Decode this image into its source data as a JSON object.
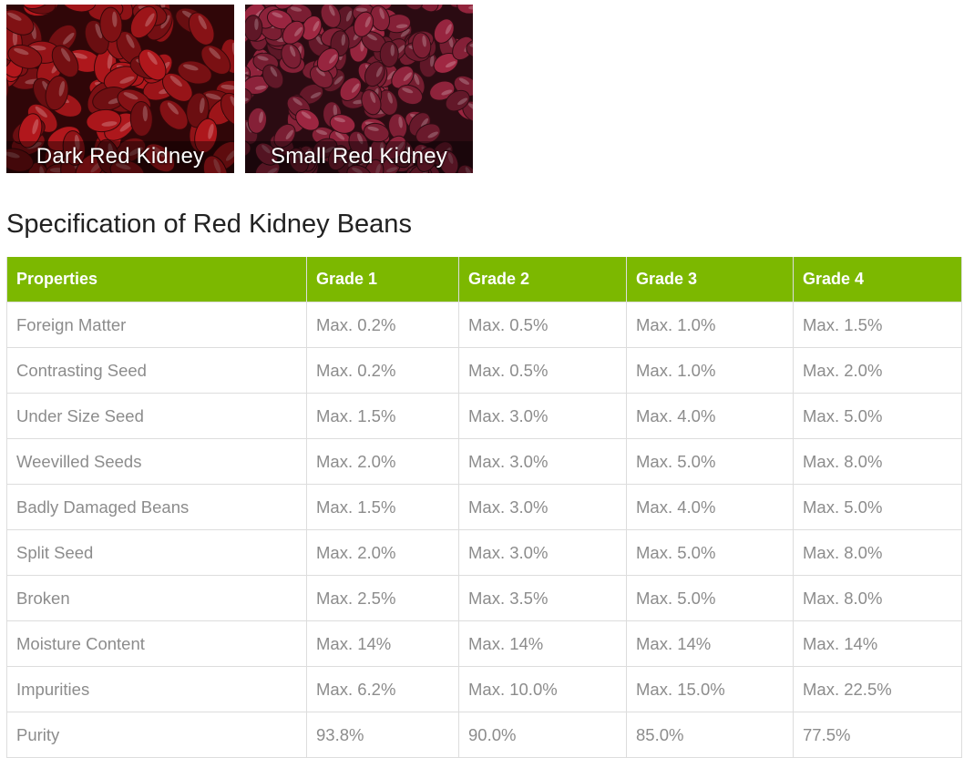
{
  "photos": [
    {
      "caption": "Dark Red Kidney",
      "color": "#8a1216"
    },
    {
      "caption": "Small Red Kidney",
      "color": "#7b1e33"
    }
  ],
  "heading": "Specification of Red Kidney Beans",
  "table": {
    "header_color": "#7cb800",
    "columns": [
      "Properties",
      "Grade 1",
      "Grade 2",
      "Grade 3",
      "Grade 4"
    ],
    "rows": [
      [
        "Foreign Matter",
        "Max. 0.2%",
        "Max. 0.5%",
        "Max. 1.0%",
        "Max. 1.5%"
      ],
      [
        "Contrasting Seed",
        "Max. 0.2%",
        "Max. 0.5%",
        "Max. 1.0%",
        "Max. 2.0%"
      ],
      [
        "Under Size Seed",
        "Max. 1.5%",
        "Max. 3.0%",
        "Max. 4.0%",
        "Max. 5.0%"
      ],
      [
        "Weevilled Seeds",
        "Max. 2.0%",
        "Max. 3.0%",
        "Max. 5.0%",
        "Max. 8.0%"
      ],
      [
        "Badly Damaged Beans",
        "Max. 1.5%",
        "Max. 3.0%",
        "Max. 4.0%",
        "Max. 5.0%"
      ],
      [
        "Split Seed",
        "Max. 2.0%",
        "Max. 3.0%",
        "Max. 5.0%",
        "Max. 8.0%"
      ],
      [
        "Broken",
        "Max. 2.5%",
        "Max. 3.5%",
        "Max. 5.0%",
        "Max. 8.0%"
      ],
      [
        "Moisture Content",
        "Max. 14%",
        "Max. 14%",
        "Max. 14%",
        "Max. 14%"
      ],
      [
        "Impurities",
        "Max. 6.2%",
        "Max. 10.0%",
        "Max. 15.0%",
        "Max. 22.5%"
      ],
      [
        "Purity",
        "93.8%",
        "90.0%",
        "85.0%",
        "77.5%"
      ]
    ]
  }
}
